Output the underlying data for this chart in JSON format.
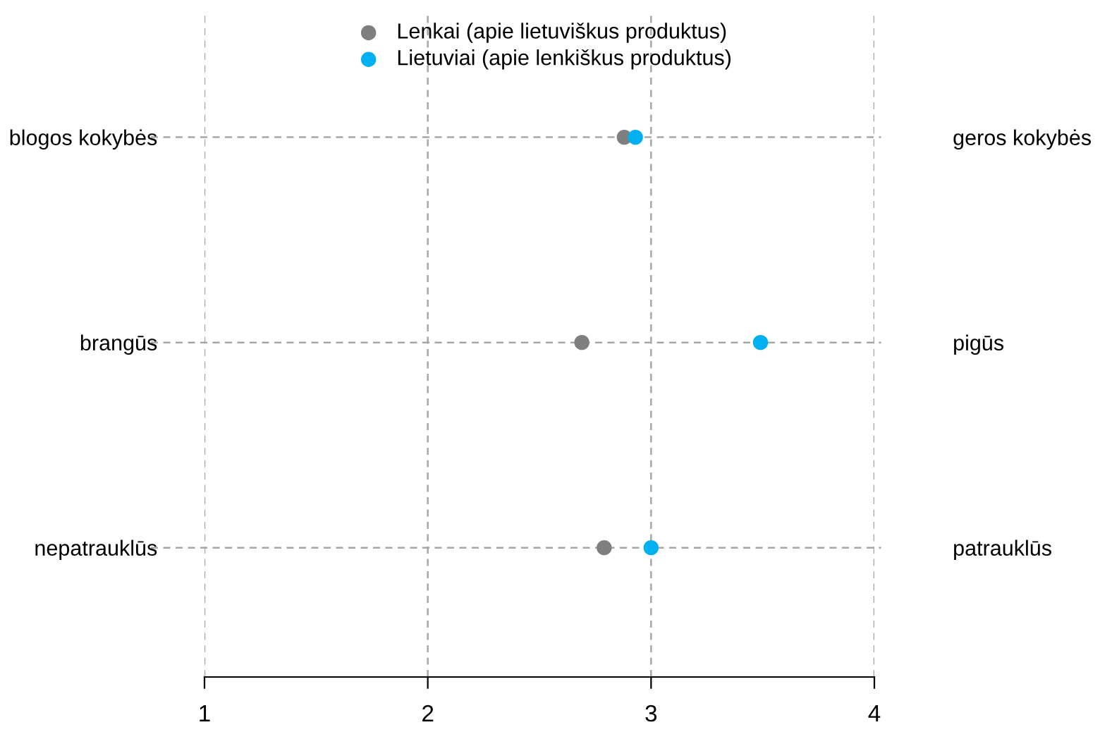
{
  "chart_data": {
    "type": "scatter",
    "orientation": "horizontal",
    "categories": [
      "blogos kokybės",
      "brangūs",
      "nepatrauklūs"
    ],
    "y2_categories": [
      "geros kokybės",
      "pigūs",
      "patrauklūs"
    ],
    "series": [
      {
        "name": "Lenkai (apie lietuviškus produktus)",
        "color": "#7f7f7f",
        "values": [
          2.88,
          2.69,
          2.79
        ]
      },
      {
        "name": "Lietuviai (apie lenkiškus produktus)",
        "color": "#00b0f0",
        "values": [
          2.93,
          3.49,
          3.0
        ]
      }
    ],
    "xlim": [
      1,
      4
    ],
    "xticks": [
      1,
      2,
      3,
      4
    ],
    "grid": true,
    "legend": "top",
    "marker": "circle"
  }
}
